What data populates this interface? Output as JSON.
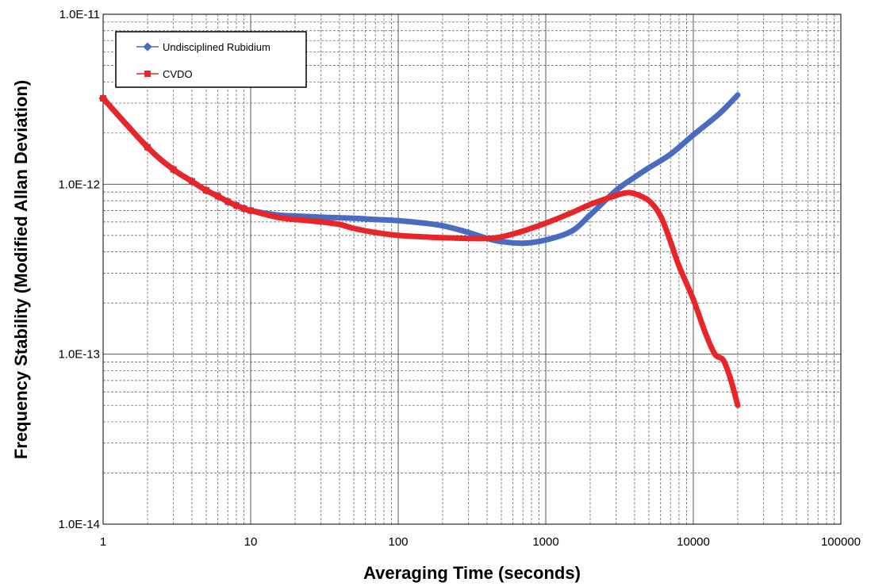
{
  "chart_data": {
    "type": "line",
    "title": "",
    "xlabel": "Averaging Time (seconds)",
    "ylabel": "Frequency Stability (Modified Allan Deviation)",
    "x_scale": "log",
    "y_scale": "log",
    "xlim": [
      1,
      100000
    ],
    "ylim": [
      1e-14,
      1e-11
    ],
    "grid": true,
    "legend_position": "top-left",
    "x_tick_labels": [
      "1",
      "10",
      "100",
      "1000",
      "10000",
      "100000"
    ],
    "y_tick_labels": [
      "1.0E-14",
      "1.0E-13",
      "1.0E-12",
      "1.0E-11"
    ],
    "series": [
      {
        "name": "Undisciplined Rubidium",
        "color": "#4a6bbf",
        "marker": "diamond",
        "x": [
          1,
          2,
          3,
          4,
          5,
          6,
          7,
          8,
          9,
          10,
          15,
          20,
          30,
          50,
          70,
          100,
          150,
          200,
          300,
          400,
          500,
          700,
          1000,
          1500,
          2000,
          3000,
          4000,
          5000,
          7000,
          10000,
          15000,
          20000
        ],
        "y": [
          3.2e-12,
          1.65e-12,
          1.22e-12,
          1.04e-12,
          9.2e-13,
          8.5e-13,
          7.9e-13,
          7.5e-13,
          7.2e-13,
          7e-13,
          6.6e-13,
          6.5e-13,
          6.4e-13,
          6.3e-13,
          6.2e-13,
          6.1e-13,
          5.9e-13,
          5.7e-13,
          5.2e-13,
          4.8e-13,
          4.6e-13,
          4.5e-13,
          4.7e-13,
          5.3e-13,
          6.6e-13,
          9.2e-13,
          1.1e-12,
          1.25e-12,
          1.5e-12,
          1.95e-12,
          2.6e-12,
          3.35e-12
        ]
      },
      {
        "name": "CVDO",
        "color": "#e8262a",
        "marker": "square",
        "x": [
          1,
          2,
          3,
          4,
          5,
          6,
          7,
          8,
          9,
          10,
          15,
          20,
          30,
          40,
          50,
          70,
          100,
          150,
          200,
          300,
          400,
          500,
          700,
          1000,
          1500,
          2000,
          3000,
          3500,
          4000,
          5000,
          6000,
          7000,
          8000,
          10000,
          12000,
          14000,
          16000,
          18000,
          20000
        ],
        "y": [
          3.2e-12,
          1.65e-12,
          1.22e-12,
          1.04e-12,
          9.2e-13,
          8.5e-13,
          7.9e-13,
          7.5e-13,
          7.2e-13,
          7e-13,
          6.4e-13,
          6.2e-13,
          6e-13,
          5.8e-13,
          5.5e-13,
          5.2e-13,
          5e-13,
          4.9e-13,
          4.85e-13,
          4.8e-13,
          4.8e-13,
          4.9e-13,
          5.3e-13,
          5.9e-13,
          6.8e-13,
          7.6e-13,
          8.6e-13,
          8.9e-13,
          8.8e-13,
          8e-13,
          6.5e-13,
          4.6e-13,
          3.3e-13,
          2.1e-13,
          1.35e-13,
          1e-13,
          9.2e-14,
          7e-14,
          5e-14
        ]
      }
    ]
  }
}
